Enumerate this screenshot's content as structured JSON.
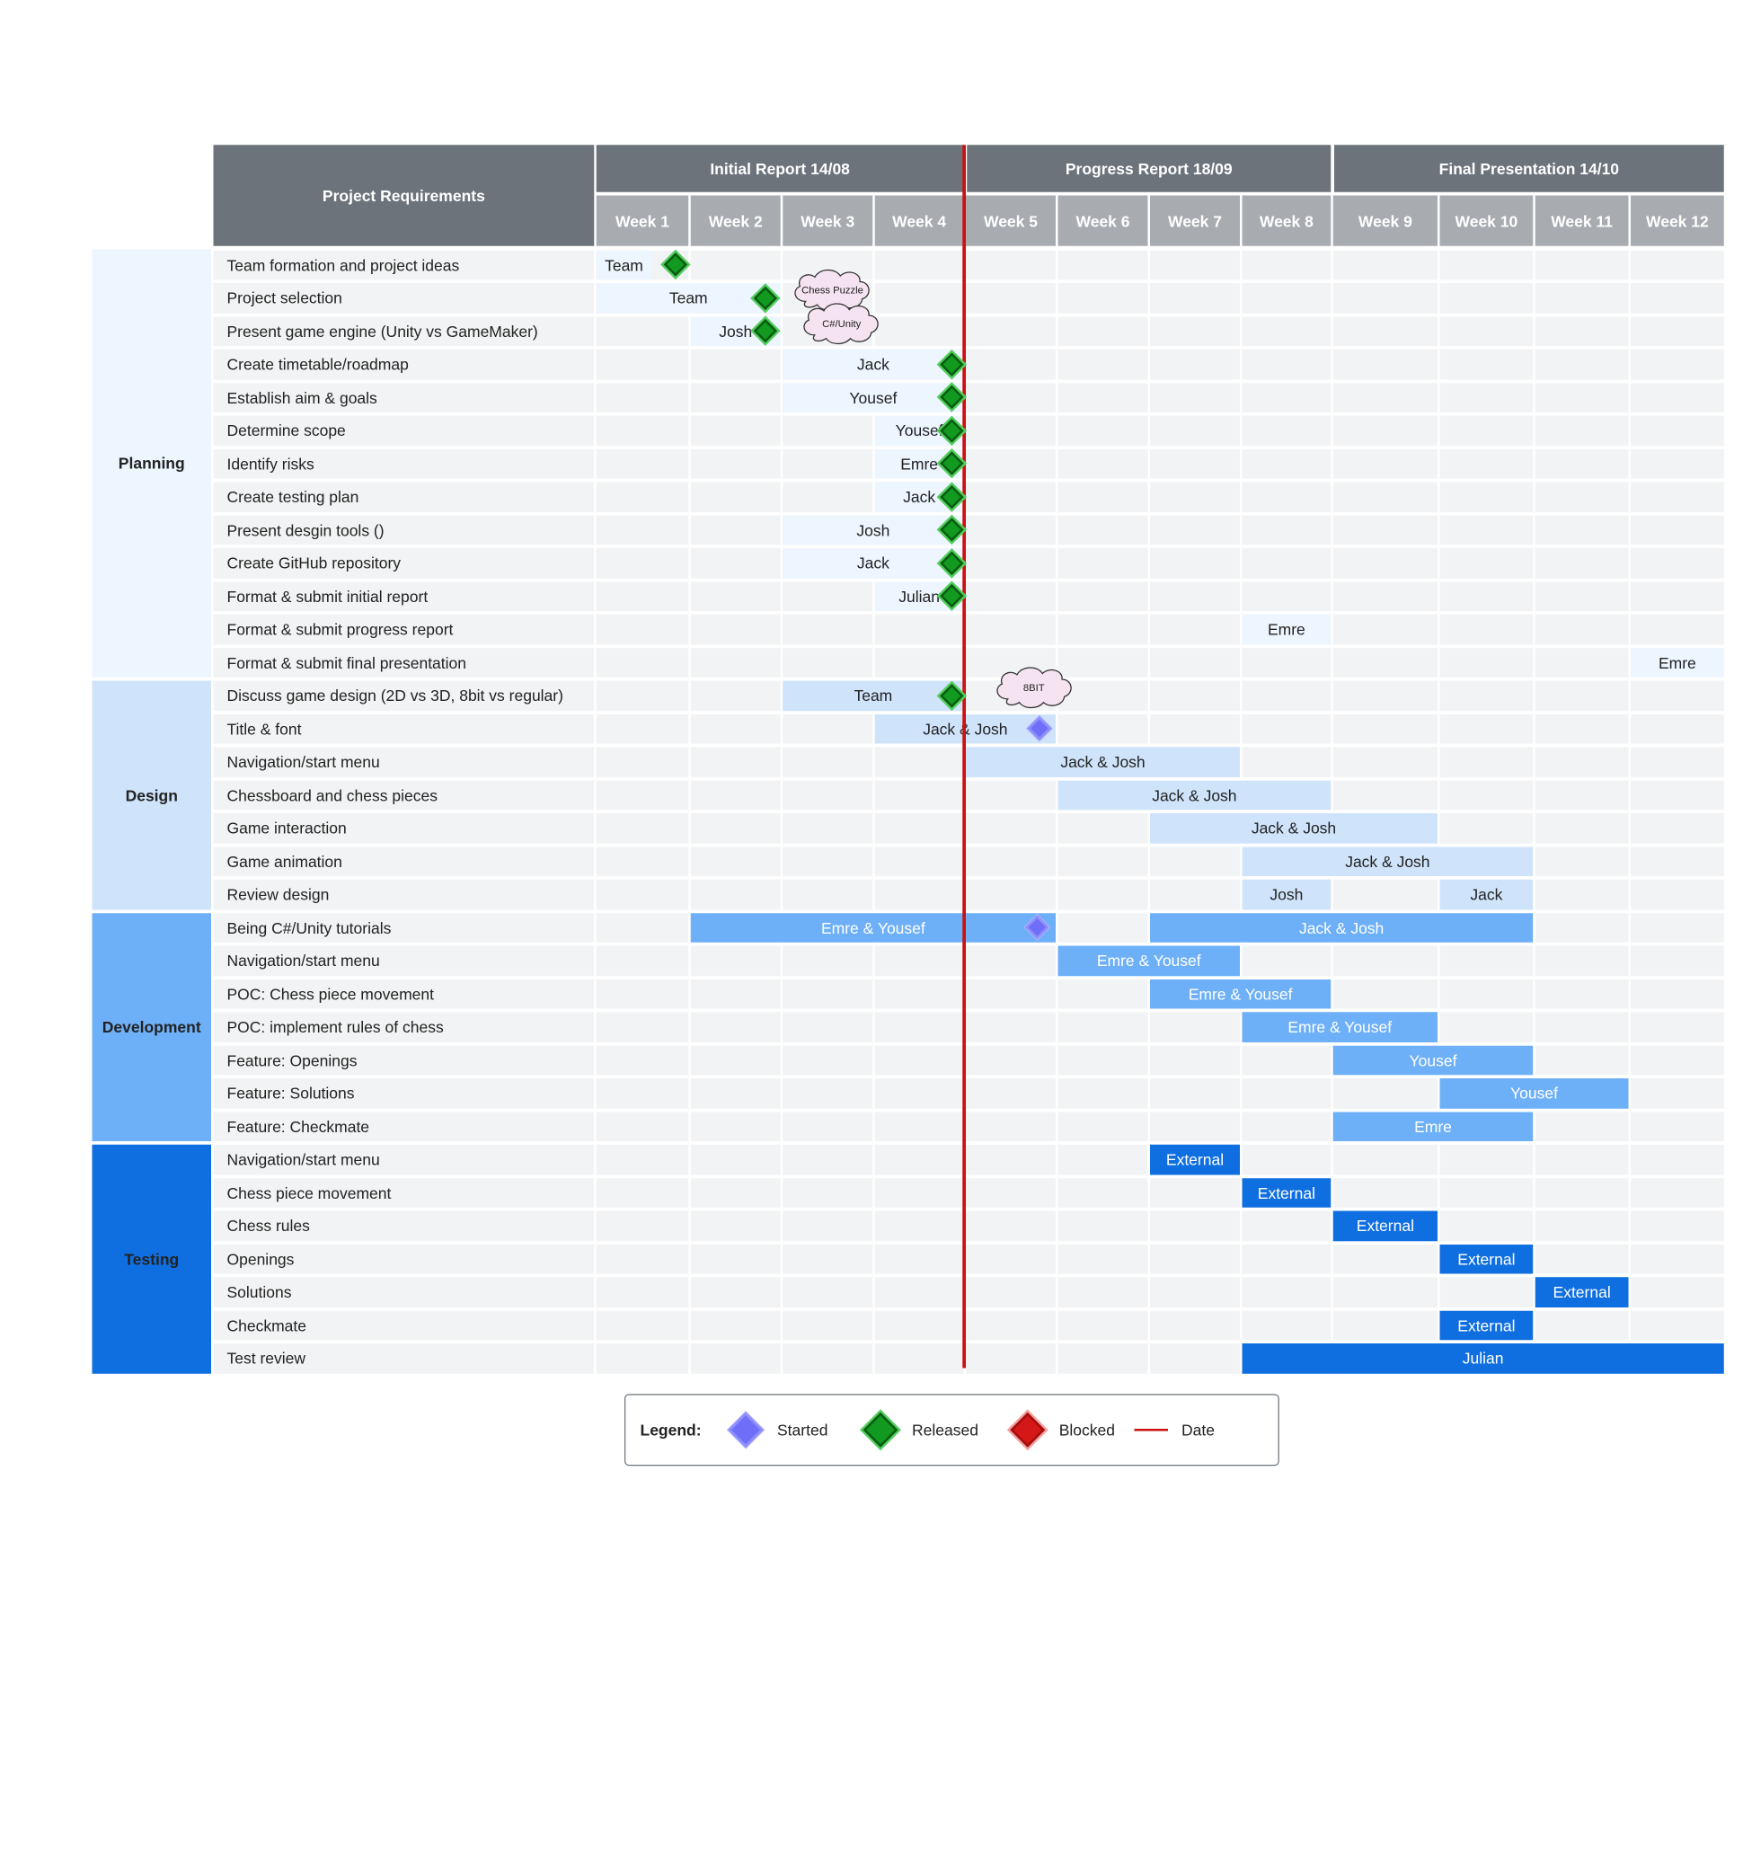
{
  "header": {
    "requirements_title": "Project Requirements",
    "milestones": [
      {
        "label": "Initial Report 14/08",
        "from": 0,
        "to": 3
      },
      {
        "label": "Progress Report 18/09",
        "from": 4,
        "to": 7
      },
      {
        "label": "Final Presentation 14/10",
        "from": 8,
        "to": 11
      }
    ],
    "weeks": [
      "Week 1",
      "Week 2",
      "Week 3",
      "Week 4",
      "Week 5",
      "Week 6",
      "Week 7",
      "Week 8",
      "Week 9",
      "Week 10",
      "Week 11",
      "Week 12"
    ]
  },
  "phases": [
    {
      "name": "Planning",
      "first": 0,
      "last": 12,
      "color": "#edf5ff"
    },
    {
      "name": "Design",
      "first": 13,
      "last": 19,
      "color": "#cfe4fb"
    },
    {
      "name": "Development",
      "first": 20,
      "last": 26,
      "color": "#6eb0f7"
    },
    {
      "name": "Testing",
      "first": 27,
      "last": 33,
      "color": "#0f6fe0"
    }
  ],
  "tasks": [
    {
      "name": "Team formation and project ideas",
      "bars": [
        {
          "label": "Team",
          "start": 0,
          "end": 0.6,
          "color": "#edf5ff",
          "text": "#222"
        }
      ],
      "markers": [
        {
          "pos": 0.86,
          "type": "released"
        }
      ]
    },
    {
      "name": "Project selection",
      "bars": [
        {
          "label": "Team",
          "start": 0,
          "end": 2,
          "color": "#edf5ff",
          "text": "#222"
        }
      ],
      "markers": [
        {
          "pos": 1.84,
          "type": "released"
        }
      ]
    },
    {
      "name": "Present game engine (Unity vs GameMaker)",
      "bars": [
        {
          "label": "Josh",
          "start": 1,
          "end": 2,
          "color": "#edf5ff",
          "text": "#222"
        }
      ],
      "markers": [
        {
          "pos": 1.84,
          "type": "released"
        }
      ]
    },
    {
      "name": "Create timetable/roadmap",
      "bars": [
        {
          "label": "Jack",
          "start": 2,
          "end": 4,
          "color": "#edf5ff",
          "text": "#222"
        }
      ],
      "markers": [
        {
          "pos": 3.87,
          "type": "released"
        }
      ]
    },
    {
      "name": "Establish aim & goals",
      "bars": [
        {
          "label": "Yousef",
          "start": 2,
          "end": 4,
          "color": "#edf5ff",
          "text": "#222"
        }
      ],
      "markers": [
        {
          "pos": 3.87,
          "type": "released"
        }
      ]
    },
    {
      "name": "Determine scope",
      "bars": [
        {
          "label": "Yousef",
          "start": 3,
          "end": 4,
          "color": "#edf5ff",
          "text": "#222"
        }
      ],
      "markers": [
        {
          "pos": 3.87,
          "type": "released"
        }
      ]
    },
    {
      "name": "Identify risks",
      "bars": [
        {
          "label": "Emre",
          "start": 3,
          "end": 4,
          "color": "#edf5ff",
          "text": "#222"
        }
      ],
      "markers": [
        {
          "pos": 3.87,
          "type": "released"
        }
      ]
    },
    {
      "name": "Create testing plan",
      "bars": [
        {
          "label": "Jack",
          "start": 3,
          "end": 4,
          "color": "#edf5ff",
          "text": "#222"
        }
      ],
      "markers": [
        {
          "pos": 3.87,
          "type": "released"
        }
      ]
    },
    {
      "name": "Present desgin tools ()",
      "bars": [
        {
          "label": "Josh",
          "start": 2,
          "end": 4,
          "color": "#edf5ff",
          "text": "#222"
        }
      ],
      "markers": [
        {
          "pos": 3.87,
          "type": "released"
        }
      ]
    },
    {
      "name": "Create GitHub repository",
      "bars": [
        {
          "label": "Jack",
          "start": 2,
          "end": 4,
          "color": "#edf5ff",
          "text": "#222"
        }
      ],
      "markers": [
        {
          "pos": 3.87,
          "type": "released"
        }
      ]
    },
    {
      "name": "Format & submit initial report",
      "bars": [
        {
          "label": "Julian",
          "start": 3,
          "end": 4,
          "color": "#edf5ff",
          "text": "#222"
        }
      ],
      "markers": [
        {
          "pos": 3.87,
          "type": "released"
        }
      ]
    },
    {
      "name": "Format & submit progress report",
      "bars": [
        {
          "label": "Emre",
          "start": 7,
          "end": 8,
          "color": "#edf5ff",
          "text": "#222"
        }
      ],
      "markers": []
    },
    {
      "name": "Format & submit final presentation",
      "bars": [
        {
          "label": "Emre",
          "start": 11,
          "end": 12,
          "color": "#edf5ff",
          "text": "#222"
        }
      ],
      "markers": []
    },
    {
      "name": "Discuss game design (2D vs 3D, 8bit vs regular)",
      "bars": [
        {
          "label": "Team",
          "start": 2,
          "end": 4,
          "color": "#cfe4fb",
          "text": "#222"
        }
      ],
      "markers": [
        {
          "pos": 3.87,
          "type": "released"
        }
      ]
    },
    {
      "name": "Title & font",
      "bars": [
        {
          "label": "Jack & Josh",
          "start": 3,
          "end": 5,
          "color": "#cfe4fb",
          "text": "#222"
        }
      ],
      "markers": [
        {
          "pos": 4.82,
          "type": "started"
        }
      ]
    },
    {
      "name": "Navigation/start menu",
      "bars": [
        {
          "label": "Jack & Josh",
          "start": 4,
          "end": 7,
          "color": "#cfe4fb",
          "text": "#222"
        }
      ],
      "markers": []
    },
    {
      "name": "Chessboard and chess pieces",
      "bars": [
        {
          "label": "Jack & Josh",
          "start": 5,
          "end": 8,
          "color": "#cfe4fb",
          "text": "#222"
        }
      ],
      "markers": []
    },
    {
      "name": "Game interaction",
      "bars": [
        {
          "label": "Jack & Josh",
          "start": 6,
          "end": 9,
          "color": "#cfe4fb",
          "text": "#222"
        }
      ],
      "markers": []
    },
    {
      "name": "Game animation",
      "bars": [
        {
          "label": "Jack & Josh",
          "start": 7,
          "end": 10,
          "color": "#cfe4fb",
          "text": "#222"
        }
      ],
      "markers": []
    },
    {
      "name": "Review design",
      "bars": [
        {
          "label": "Josh",
          "start": 7,
          "end": 8,
          "color": "#cfe4fb",
          "text": "#222"
        },
        {
          "label": "Jack",
          "start": 9,
          "end": 10,
          "color": "#cfe4fb",
          "text": "#222"
        }
      ],
      "markers": []
    },
    {
      "name": "Being C#/Unity tutorials",
      "bars": [
        {
          "label": "Emre & Yousef",
          "start": 1,
          "end": 5,
          "color": "#6eb0f7",
          "text": "#ffffff"
        },
        {
          "label": "Jack & Josh",
          "start": 6,
          "end": 10,
          "color": "#6eb0f7",
          "text": "#ffffff"
        }
      ],
      "markers": [
        {
          "pos": 4.8,
          "type": "started"
        }
      ]
    },
    {
      "name": "Navigation/start menu",
      "bars": [
        {
          "label": "Emre & Yousef",
          "start": 5,
          "end": 7,
          "color": "#6eb0f7",
          "text": "#ffffff"
        }
      ],
      "markers": []
    },
    {
      "name": "POC: Chess piece movement",
      "bars": [
        {
          "label": "Emre & Yousef",
          "start": 6,
          "end": 8,
          "color": "#6eb0f7",
          "text": "#ffffff"
        }
      ],
      "markers": []
    },
    {
      "name": "POC: implement rules of chess",
      "bars": [
        {
          "label": "Emre & Yousef",
          "start": 7,
          "end": 9,
          "color": "#6eb0f7",
          "text": "#ffffff"
        }
      ],
      "markers": []
    },
    {
      "name": "Feature: Openings",
      "bars": [
        {
          "label": "Yousef",
          "start": 8,
          "end": 10,
          "color": "#6eb0f7",
          "text": "#ffffff"
        }
      ],
      "markers": []
    },
    {
      "name": "Feature: Solutions",
      "bars": [
        {
          "label": "Yousef",
          "start": 9,
          "end": 11,
          "color": "#6eb0f7",
          "text": "#ffffff"
        }
      ],
      "markers": []
    },
    {
      "name": "Feature: Checkmate",
      "bars": [
        {
          "label": "Emre",
          "start": 8,
          "end": 10,
          "color": "#6eb0f7",
          "text": "#ffffff"
        }
      ],
      "markers": []
    },
    {
      "name": "Navigation/start menu",
      "bars": [
        {
          "label": "External",
          "start": 6,
          "end": 7,
          "color": "#0f6fe0",
          "text": "#ffffff"
        }
      ],
      "markers": []
    },
    {
      "name": "Chess piece movement",
      "bars": [
        {
          "label": "External",
          "start": 7,
          "end": 8,
          "color": "#0f6fe0",
          "text": "#ffffff"
        }
      ],
      "markers": []
    },
    {
      "name": "Chess rules",
      "bars": [
        {
          "label": "External",
          "start": 8,
          "end": 9,
          "color": "#0f6fe0",
          "text": "#ffffff"
        }
      ],
      "markers": []
    },
    {
      "name": "Openings",
      "bars": [
        {
          "label": "External",
          "start": 9,
          "end": 10,
          "color": "#0f6fe0",
          "text": "#ffffff"
        }
      ],
      "markers": []
    },
    {
      "name": "Solutions",
      "bars": [
        {
          "label": "External",
          "start": 10,
          "end": 11,
          "color": "#0f6fe0",
          "text": "#ffffff"
        }
      ],
      "markers": []
    },
    {
      "name": "Checkmate",
      "bars": [
        {
          "label": "External",
          "start": 9,
          "end": 10,
          "color": "#0f6fe0",
          "text": "#ffffff"
        }
      ],
      "markers": []
    },
    {
      "name": "Test review",
      "bars": [
        {
          "label": "Julian",
          "start": 7,
          "end": 12,
          "color": "#0f6fe0",
          "text": "#ffffff"
        }
      ],
      "markers": []
    }
  ],
  "callouts": [
    {
      "text": "Chess Puzzle",
      "row": 1,
      "pos": 2.1
    },
    {
      "text": "C#/Unity",
      "row": 2,
      "pos": 2.2
    },
    {
      "text": "8BIT",
      "row": 13,
      "pos": 4.3
    }
  ],
  "today_line": {
    "pos": 4.0,
    "color": "#cc1111"
  },
  "legend": {
    "title": "Legend:",
    "items": [
      {
        "type": "started",
        "label": "Started"
      },
      {
        "type": "released",
        "label": "Released"
      },
      {
        "type": "blocked",
        "label": "Blocked"
      },
      {
        "type": "date",
        "label": "Date"
      }
    ]
  }
}
